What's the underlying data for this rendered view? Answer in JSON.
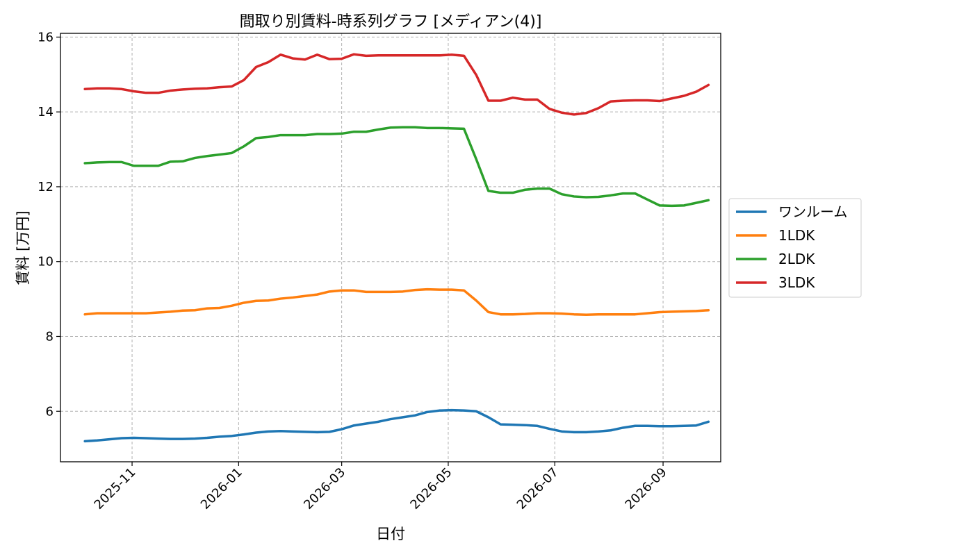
{
  "chart_data": {
    "type": "line",
    "title": "間取り別賃料-時系列グラフ [メディアン(4)]",
    "xlabel": "日付",
    "ylabel": "賃料 [万円]",
    "x_type": "date",
    "xlim": [
      "2025-09-21",
      "2026-10-04"
    ],
    "ylim": [
      4.65,
      16.1
    ],
    "x_ticks": [
      "2025-11-01",
      "2026-01-01",
      "2026-03-01",
      "2026-05-01",
      "2026-07-01",
      "2026-09-01"
    ],
    "x_tick_labels": [
      "2025-11",
      "2026-01",
      "2026-03",
      "2026-05",
      "2026-07",
      "2026-09"
    ],
    "y_ticks": [
      6,
      8,
      10,
      12,
      14,
      16
    ],
    "y_tick_labels": [
      "6",
      "8",
      "10",
      "12",
      "14",
      "16"
    ],
    "grid": true,
    "legend_placement": "center-right-outside",
    "x": [
      "2025-10-05",
      "2025-10-12",
      "2025-10-19",
      "2025-10-26",
      "2025-11-02",
      "2025-11-09",
      "2025-11-16",
      "2025-11-23",
      "2025-11-30",
      "2025-12-07",
      "2025-12-14",
      "2025-12-21",
      "2025-12-28",
      "2026-01-04",
      "2026-01-11",
      "2026-01-18",
      "2026-01-25",
      "2026-02-01",
      "2026-02-08",
      "2026-02-15",
      "2026-02-22",
      "2026-03-01",
      "2026-03-08",
      "2026-03-15",
      "2026-03-22",
      "2026-03-29",
      "2026-04-05",
      "2026-04-12",
      "2026-04-19",
      "2026-04-26",
      "2026-05-03",
      "2026-05-10",
      "2026-05-17",
      "2026-05-24",
      "2026-05-31",
      "2026-06-07",
      "2026-06-14",
      "2026-06-21",
      "2026-06-28",
      "2026-07-05",
      "2026-07-12",
      "2026-07-19",
      "2026-07-26",
      "2026-08-02",
      "2026-08-09",
      "2026-08-16",
      "2026-08-23",
      "2026-08-30",
      "2026-09-06",
      "2026-09-13",
      "2026-09-20",
      "2026-09-27"
    ],
    "series": [
      {
        "name": "ワンルーム",
        "color": "#1f77b4",
        "values": [
          5.2,
          5.22,
          5.25,
          5.28,
          5.29,
          5.28,
          5.27,
          5.26,
          5.26,
          5.27,
          5.29,
          5.32,
          5.34,
          5.38,
          5.43,
          5.46,
          5.47,
          5.46,
          5.45,
          5.44,
          5.45,
          5.52,
          5.62,
          5.67,
          5.72,
          5.79,
          5.84,
          5.89,
          5.98,
          6.02,
          6.03,
          6.02,
          6.0,
          5.84,
          5.65,
          5.64,
          5.63,
          5.61,
          5.53,
          5.46,
          5.44,
          5.44,
          5.46,
          5.49,
          5.56,
          5.61,
          5.61,
          5.6,
          5.6,
          5.61,
          5.62,
          5.72
        ]
      },
      {
        "name": "1LDK",
        "color": "#ff7f0e",
        "values": [
          8.59,
          8.62,
          8.62,
          8.62,
          8.62,
          8.62,
          8.64,
          8.66,
          8.69,
          8.7,
          8.75,
          8.76,
          8.82,
          8.9,
          8.95,
          8.96,
          9.01,
          9.04,
          9.08,
          9.12,
          9.2,
          9.23,
          9.23,
          9.19,
          9.19,
          9.19,
          9.2,
          9.24,
          9.26,
          9.25,
          9.25,
          9.23,
          8.96,
          8.65,
          8.59,
          8.59,
          8.6,
          8.62,
          8.62,
          8.61,
          8.59,
          8.58,
          8.59,
          8.59,
          8.59,
          8.59,
          8.62,
          8.65,
          8.66,
          8.67,
          8.68,
          8.7
        ]
      },
      {
        "name": "2LDK",
        "color": "#2ca02c",
        "values": [
          12.63,
          12.65,
          12.66,
          12.66,
          12.56,
          12.56,
          12.56,
          12.67,
          12.68,
          12.77,
          12.82,
          12.86,
          12.9,
          13.08,
          13.3,
          13.33,
          13.38,
          13.38,
          13.38,
          13.41,
          13.41,
          13.42,
          13.47,
          13.47,
          13.53,
          13.58,
          13.59,
          13.59,
          13.57,
          13.57,
          13.56,
          13.55,
          12.74,
          11.89,
          11.84,
          11.84,
          11.92,
          11.95,
          11.95,
          11.8,
          11.74,
          11.72,
          11.73,
          11.77,
          11.82,
          11.82,
          11.66,
          11.5,
          11.49,
          11.5,
          11.57,
          11.64
        ]
      },
      {
        "name": "3LDK",
        "color": "#d62728",
        "values": [
          14.61,
          14.63,
          14.63,
          14.61,
          14.55,
          14.51,
          14.51,
          14.57,
          14.6,
          14.62,
          14.63,
          14.66,
          14.68,
          14.85,
          15.2,
          15.33,
          15.53,
          15.43,
          15.4,
          15.53,
          15.41,
          15.42,
          15.54,
          15.5,
          15.51,
          15.51,
          15.51,
          15.51,
          15.51,
          15.51,
          15.53,
          15.5,
          14.99,
          14.3,
          14.3,
          14.38,
          14.33,
          14.33,
          14.08,
          13.98,
          13.93,
          13.97,
          14.1,
          14.28,
          14.3,
          14.31,
          14.31,
          14.29,
          14.36,
          14.43,
          14.54,
          14.72
        ]
      }
    ]
  }
}
